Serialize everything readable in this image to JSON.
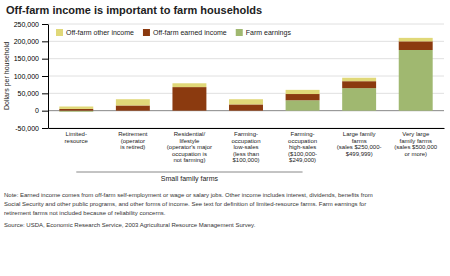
{
  "chart_data": {
    "type": "bar",
    "stacked": true,
    "title": "Off-farm income is important to farm households",
    "ylabel": "Dollars per household",
    "categories": [
      "Limited-\nresource",
      "Retirement\n(operator\nis retired)",
      "Residential/\nlifestyle\n(operator's major\noccupation is\nnot farming)",
      "Farming-\noccupation\nlow-sales\n(less than\n$100,000)",
      "Farming-\noccupation\nhigh-sales\n($100,000-\n$249,000)",
      "Large family\nfarms\n(sales $250,000-\n$499,999)",
      "Very large\nfamily farms\n(sales $500,000\nor more)"
    ],
    "series": [
      {
        "name": "Farm earnings",
        "color": "#a0b870",
        "values": [
          -3000,
          0,
          0,
          0,
          30000,
          65000,
          175000
        ]
      },
      {
        "name": "Off-farm earned income",
        "color": "#8B3A0F",
        "values": [
          5000,
          15000,
          68000,
          18000,
          18000,
          20000,
          25000
        ]
      },
      {
        "name": "Off-farm other income",
        "color": "#e0d878",
        "values": [
          7000,
          18000,
          11000,
          15000,
          12000,
          10000,
          10000
        ]
      }
    ],
    "ylim": [
      -50000,
      250000
    ],
    "yticks": [
      {
        "value": -50000,
        "label": "-50,000"
      },
      0,
      {
        "value": 50000,
        "label": "50,000"
      },
      {
        "value": 100000,
        "label": "100,000"
      },
      {
        "value": 150000,
        "label": "150,000"
      },
      {
        "value": 200000,
        "label": "200,000"
      },
      {
        "value": 250000,
        "label": "250,000"
      }
    ],
    "grid": true,
    "legend": "upper left",
    "annotations": [
      "Small family farms"
    ],
    "notes": [
      "Note:  Earned income comes from off-farm self-employment or wage or salary jobs.  Other income includes interest, dividends, benefits from",
      "Social Security and other public programs, and other forms of income.  See text for definition of limited-resource farms.  Farm earnings for",
      "retirement farms not included because of reliability concerns.",
      "Source:  USDA, Economic Research Service, 2003 Agricultural Resource Management Survey."
    ]
  }
}
